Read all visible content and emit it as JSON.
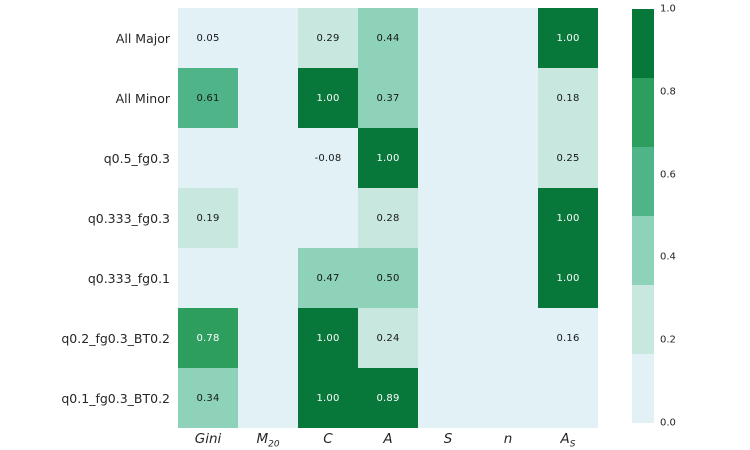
{
  "chart_data": {
    "type": "heatmap",
    "title": "",
    "xlabel": "",
    "ylabel": "",
    "rows": [
      "All Major",
      "All Minor",
      "q0.5_fg0.3",
      "q0.333_fg0.3",
      "q0.333_fg0.1",
      "q0.2_fg0.3_BT0.2",
      "q0.1_fg0.3_BT0.2"
    ],
    "columns": [
      {
        "main": "Gini",
        "sub": ""
      },
      {
        "main": "M",
        "sub": "20"
      },
      {
        "main": "C",
        "sub": ""
      },
      {
        "main": "A",
        "sub": ""
      },
      {
        "main": "S",
        "sub": ""
      },
      {
        "main": "n",
        "sub": ""
      },
      {
        "main": "A",
        "sub": "S"
      }
    ],
    "values": [
      [
        0.05,
        null,
        0.29,
        0.44,
        null,
        null,
        1.0
      ],
      [
        0.61,
        null,
        1.0,
        0.37,
        null,
        null,
        0.18
      ],
      [
        null,
        null,
        -0.08,
        1.0,
        null,
        null,
        0.25
      ],
      [
        0.19,
        null,
        null,
        0.28,
        null,
        null,
        1.0
      ],
      [
        null,
        null,
        0.47,
        0.5,
        null,
        null,
        1.0
      ],
      [
        0.78,
        null,
        1.0,
        0.24,
        null,
        null,
        0.16
      ],
      [
        0.34,
        null,
        1.0,
        0.89,
        null,
        null,
        null
      ]
    ],
    "value_range": [
      0.0,
      1.0
    ],
    "palette_light_to_dark": [
      "#e1f1f5",
      "#c8e8df",
      "#8ed2b9",
      "#4fb487",
      "#2e9e5e",
      "#07783a"
    ],
    "annotation_color_dark_cells": "#ffffff",
    "annotation_color_light_cells": "#171717",
    "legend_position": "right",
    "grid": false,
    "colorbar": {
      "tick_labels": [
        "1.0",
        "0.8",
        "0.6",
        "0.4",
        "0.2",
        "0.0"
      ],
      "tick_values": [
        1.0,
        0.8,
        0.6,
        0.4,
        0.2,
        0.0
      ]
    }
  }
}
